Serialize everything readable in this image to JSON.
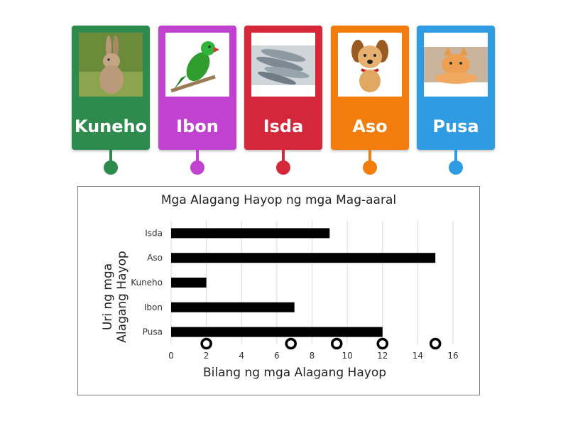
{
  "cards": [
    {
      "label": "Kuneho",
      "color": "#2e8b4e",
      "picture": "rabbit"
    },
    {
      "label": "Ibon",
      "color": "#c142d1",
      "picture": "parrot"
    },
    {
      "label": "Isda",
      "color": "#d5273a",
      "picture": "fish"
    },
    {
      "label": "Aso",
      "color": "#f27d0c",
      "picture": "dog"
    },
    {
      "label": "Pusa",
      "color": "#2e9be3",
      "picture": "cat"
    }
  ],
  "chart_data": {
    "type": "bar",
    "orientation": "horizontal",
    "title": "Mga Alagang Hayop ng mga Mag-aaral",
    "xlabel": "Bilang ng mga Alagang Hayop",
    "ylabel": [
      "Uri ng mga",
      "Alagang Hayop"
    ],
    "categories": [
      "Isda",
      "Aso",
      "Kuneho",
      "Ibon",
      "Pusa"
    ],
    "values": [
      9,
      15,
      2,
      7,
      12
    ],
    "xlim": [
      0,
      16
    ],
    "xticks": [
      0,
      2,
      4,
      6,
      8,
      10,
      12,
      14,
      16
    ],
    "grid": true,
    "bar_color": "#000000",
    "drop_targets_x": [
      2,
      6.8,
      9.4,
      12,
      15
    ]
  }
}
